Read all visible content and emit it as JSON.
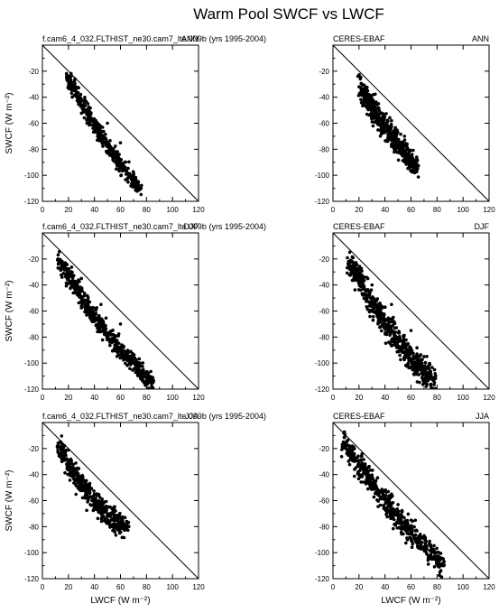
{
  "title": "Warm Pool SWCF vs LWCF",
  "chart_data": {
    "type": "scatter",
    "title": "Warm Pool SWCF vs LWCF",
    "xlabel": "LWCF (W m⁻²)",
    "ylabel": "SWCF (W m⁻²)",
    "xlim": [
      0,
      120
    ],
    "ylim": [
      -120,
      0
    ],
    "xticks": [
      "0",
      "20",
      "40",
      "60",
      "80",
      "100",
      "120"
    ],
    "yticks": [
      "-20",
      "-40",
      "-60",
      "-80",
      "-100",
      "-120"
    ],
    "reference_line": "y = -x",
    "grid": false,
    "panels": [
      {
        "id": "model-ann",
        "left_label": "f.cam6_4_032.FLTHIST_ne30.cam7_lte.009b (yrs 1995-2004)",
        "right_label": "ANN",
        "show_ylabel": true,
        "show_xlabel": false,
        "cluster": {
          "x0": 20,
          "y0": -25,
          "x1": 75,
          "y1": -110,
          "spread": 6,
          "offset": -6,
          "n": 420
        },
        "points": [
          [
            20,
            -25
          ],
          [
            35,
            -45
          ],
          [
            50,
            -60
          ],
          [
            60,
            -75
          ],
          [
            70,
            -100
          ],
          [
            75,
            -110
          ]
        ]
      },
      {
        "id": "obs-ann",
        "left_label": "CERES-EBAF",
        "right_label": "ANN",
        "show_ylabel": false,
        "show_xlabel": false,
        "cluster": {
          "x0": 20,
          "y0": -32,
          "x1": 65,
          "y1": -95,
          "spread": 9,
          "offset": -3,
          "n": 520
        },
        "points": [
          [
            20,
            -32
          ],
          [
            35,
            -45
          ],
          [
            45,
            -58
          ],
          [
            55,
            -70
          ],
          [
            62,
            -88
          ],
          [
            65,
            -95
          ]
        ]
      },
      {
        "id": "model-djf",
        "left_label": "f.cam6_4_032.FLTHIST_ne30.cam7_lte.009b (yrs 1995-2004)",
        "right_label": "DJF",
        "show_ylabel": true,
        "show_xlabel": false,
        "cluster": {
          "x0": 12,
          "y0": -20,
          "x1": 85,
          "y1": -115,
          "spread": 7,
          "offset": -8,
          "n": 520
        },
        "points": [
          [
            12,
            -20
          ],
          [
            30,
            -35
          ],
          [
            45,
            -55
          ],
          [
            60,
            -70
          ],
          [
            75,
            -100
          ],
          [
            85,
            -115
          ]
        ]
      },
      {
        "id": "obs-djf",
        "left_label": "CERES-EBAF",
        "right_label": "DJF",
        "show_ylabel": false,
        "show_xlabel": false,
        "cluster": {
          "x0": 12,
          "y0": -22,
          "x1": 78,
          "y1": -115,
          "spread": 10,
          "offset": -8,
          "n": 560
        },
        "points": [
          [
            12,
            -22
          ],
          [
            30,
            -40
          ],
          [
            45,
            -55
          ],
          [
            60,
            -75
          ],
          [
            70,
            -95
          ],
          [
            78,
            -115
          ]
        ]
      },
      {
        "id": "model-jja",
        "left_label": "f.cam6_4_032.FLTHIST_ne30.cam7_lte.009b (yrs 1995-2004)",
        "right_label": "JJA",
        "show_ylabel": true,
        "show_xlabel": true,
        "cluster": {
          "x0": 12,
          "y0": -18,
          "x1": 65,
          "y1": -80,
          "spread": 9,
          "offset": -10,
          "n": 440
        },
        "points": [
          [
            12,
            -18
          ],
          [
            25,
            -40
          ],
          [
            40,
            -55
          ],
          [
            55,
            -65
          ],
          [
            65,
            -80
          ]
        ]
      },
      {
        "id": "obs-jja",
        "left_label": "CERES-EBAF",
        "right_label": "JJA",
        "show_ylabel": false,
        "show_xlabel": true,
        "cluster": {
          "x0": 8,
          "y0": -15,
          "x1": 85,
          "y1": -110,
          "spread": 9,
          "offset": -6,
          "n": 520
        },
        "points": [
          [
            8,
            -15
          ],
          [
            25,
            -35
          ],
          [
            45,
            -55
          ],
          [
            60,
            -75
          ],
          [
            75,
            -95
          ],
          [
            85,
            -110
          ]
        ]
      }
    ]
  }
}
